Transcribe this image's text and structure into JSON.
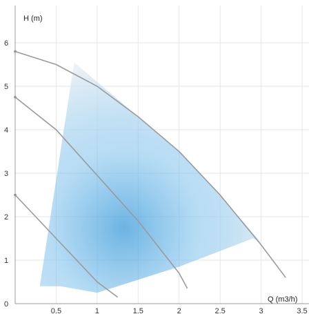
{
  "chart_data": {
    "type": "line",
    "title": "",
    "xlabel": "Q (m3/h)",
    "ylabel": "H (m)",
    "xlim": [
      0,
      3.5
    ],
    "ylim": [
      0,
      6
    ],
    "x_ticks": [
      "0.5",
      "1",
      "1.5",
      "2",
      "2.5",
      "3",
      "3.5"
    ],
    "y_ticks": [
      "0",
      "1",
      "2",
      "3",
      "4",
      "5",
      "6"
    ],
    "grid": true,
    "series": [
      {
        "x": [
          0.0,
          0.5,
          1.0,
          1.5,
          2.0,
          2.5,
          3.0,
          3.3
        ],
        "y": [
          5.8,
          5.5,
          5.0,
          4.3,
          3.5,
          2.5,
          1.35,
          0.6
        ]
      },
      {
        "x": [
          0.0,
          0.5,
          1.0,
          1.5,
          2.0,
          2.1
        ],
        "y": [
          4.75,
          4.0,
          2.95,
          1.9,
          0.7,
          0.35
        ]
      },
      {
        "x": [
          0.0,
          0.5,
          1.0,
          1.25
        ],
        "y": [
          2.5,
          1.5,
          0.5,
          0.15
        ]
      }
    ],
    "operating_area": {
      "q": [
        0.3,
        0.72,
        1.0,
        1.5,
        2.0,
        2.5,
        3.0,
        2.9,
        2.0,
        1.0,
        0.55,
        0.3
      ],
      "h": [
        0.4,
        5.55,
        5.1,
        4.3,
        3.5,
        2.5,
        1.4,
        1.5,
        0.85,
        0.25,
        0.4,
        0.4
      ]
    },
    "colors": {
      "curve": "#9a9a9a",
      "grid": "#e6e6e6",
      "area_light": "#eef1f4",
      "area_blue": "#3a9ad9"
    }
  }
}
